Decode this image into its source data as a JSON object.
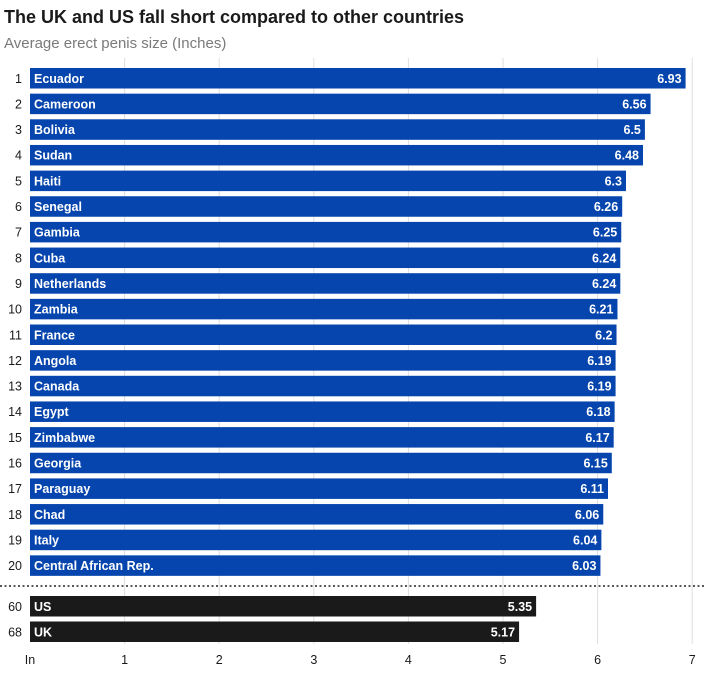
{
  "chart_data": {
    "type": "bar",
    "orientation": "horizontal",
    "title": "The UK and US fall short compared to other countries",
    "subtitle": "Average erect penis size (Inches)",
    "xlabel": "In",
    "xlim": [
      0,
      7
    ],
    "xticks": [
      1,
      2,
      3,
      4,
      5,
      6,
      7
    ],
    "colors": {
      "top": "#0645ad",
      "highlight": "#1a1a1a"
    },
    "series": [
      {
        "rank": "1",
        "name": "Ecuador",
        "value": 6.93,
        "label": "6.93",
        "group": "top"
      },
      {
        "rank": "2",
        "name": "Cameroon",
        "value": 6.56,
        "label": "6.56",
        "group": "top"
      },
      {
        "rank": "3",
        "name": "Bolivia",
        "value": 6.5,
        "label": "6.5",
        "group": "top"
      },
      {
        "rank": "4",
        "name": "Sudan",
        "value": 6.48,
        "label": "6.48",
        "group": "top"
      },
      {
        "rank": "5",
        "name": "Haiti",
        "value": 6.3,
        "label": "6.3",
        "group": "top"
      },
      {
        "rank": "6",
        "name": "Senegal",
        "value": 6.26,
        "label": "6.26",
        "group": "top"
      },
      {
        "rank": "7",
        "name": "Gambia",
        "value": 6.25,
        "label": "6.25",
        "group": "top"
      },
      {
        "rank": "8",
        "name": "Cuba",
        "value": 6.24,
        "label": "6.24",
        "group": "top"
      },
      {
        "rank": "9",
        "name": "Netherlands",
        "value": 6.24,
        "label": "6.24",
        "group": "top"
      },
      {
        "rank": "10",
        "name": "Zambia",
        "value": 6.21,
        "label": "6.21",
        "group": "top"
      },
      {
        "rank": "11",
        "name": "France",
        "value": 6.2,
        "label": "6.2",
        "group": "top"
      },
      {
        "rank": "12",
        "name": "Angola",
        "value": 6.19,
        "label": "6.19",
        "group": "top"
      },
      {
        "rank": "13",
        "name": "Canada",
        "value": 6.19,
        "label": "6.19",
        "group": "top"
      },
      {
        "rank": "14",
        "name": "Egypt",
        "value": 6.18,
        "label": "6.18",
        "group": "top"
      },
      {
        "rank": "15",
        "name": "Zimbabwe",
        "value": 6.17,
        "label": "6.17",
        "group": "top"
      },
      {
        "rank": "16",
        "name": "Georgia",
        "value": 6.15,
        "label": "6.15",
        "group": "top"
      },
      {
        "rank": "17",
        "name": "Paraguay",
        "value": 6.11,
        "label": "6.11",
        "group": "top"
      },
      {
        "rank": "18",
        "name": "Chad",
        "value": 6.06,
        "label": "6.06",
        "group": "top"
      },
      {
        "rank": "19",
        "name": "Italy",
        "value": 6.04,
        "label": "6.04",
        "group": "top"
      },
      {
        "rank": "20",
        "name": "Central African Rep.",
        "value": 6.03,
        "label": "6.03",
        "group": "top"
      },
      {
        "rank": "60",
        "name": "US",
        "value": 5.35,
        "label": "5.35",
        "group": "highlight"
      },
      {
        "rank": "68",
        "name": "UK",
        "value": 5.17,
        "label": "5.17",
        "group": "highlight"
      }
    ]
  }
}
